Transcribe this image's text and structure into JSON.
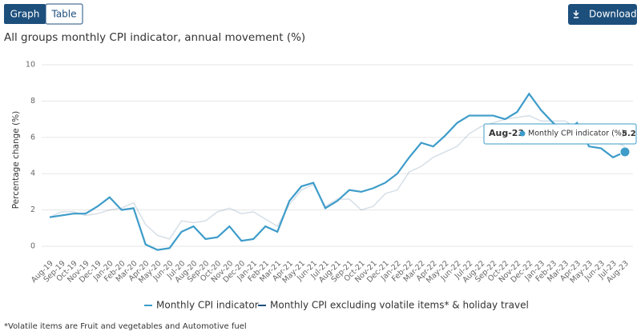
{
  "ui": {
    "tabs": [
      "Graph",
      "Table"
    ],
    "download": "Download"
  },
  "chart_data": {
    "type": "line",
    "title": "All groups monthly CPI indicator, annual movement (%)",
    "y_label": "Percentage change (%)",
    "note": "*Volatile items are Fruit and vegetables and Automotive fuel",
    "categories": [
      "Aug-19",
      "Sep-19",
      "Oct-19",
      "Nov-19",
      "Dec-19",
      "Jan-20",
      "Feb-20",
      "Mar-20",
      "Apr-20",
      "May-20",
      "Jun-20",
      "Jul-20",
      "Aug-20",
      "Sep-20",
      "Oct-20",
      "Nov-20",
      "Dec-20",
      "Jan-21",
      "Feb-21",
      "Mar-21",
      "Apr-21",
      "May-21",
      "Jun-21",
      "Jul-21",
      "Aug-21",
      "Sep-21",
      "Oct-21",
      "Nov-21",
      "Dec-21",
      "Jan-22",
      "Feb-22",
      "Mar-22",
      "Apr-22",
      "May-22",
      "Jun-22",
      "Jul-22",
      "Aug-22",
      "Sep-22",
      "Oct-22",
      "Nov-22",
      "Dec-22",
      "Jan-23",
      "Feb-23",
      "Mar-23",
      "Apr-23",
      "May-23",
      "Jun-23",
      "Jul-23",
      "Aug-23"
    ],
    "series": [
      {
        "name": "Monthly CPI indicator",
        "color": "#3d9cc9",
        "values": [
          1.6,
          1.7,
          1.8,
          1.8,
          2.2,
          2.7,
          2.0,
          2.1,
          0.1,
          -0.2,
          -0.1,
          0.8,
          1.1,
          0.4,
          0.5,
          1.1,
          0.3,
          0.4,
          1.1,
          0.8,
          2.5,
          3.3,
          3.5,
          2.1,
          2.5,
          3.1,
          3.0,
          3.2,
          3.5,
          4.0,
          4.9,
          5.7,
          5.5,
          6.1,
          6.8,
          7.2,
          7.2,
          7.2,
          7.0,
          7.4,
          8.4,
          7.5,
          6.8,
          6.3,
          6.8,
          5.5,
          5.4,
          4.9,
          5.2
        ]
      },
      {
        "name": "Monthly CPI excluding volatile items* & holiday travel",
        "color": "#1d4f7c",
        "values": [
          1.6,
          1.9,
          1.9,
          1.7,
          1.8,
          2.0,
          2.1,
          2.4,
          1.2,
          0.6,
          0.4,
          1.4,
          1.3,
          1.4,
          1.9,
          2.1,
          1.8,
          1.9,
          1.5,
          1.1,
          2.3,
          3.1,
          3.4,
          2.2,
          2.6,
          2.6,
          2.0,
          2.2,
          2.9,
          3.1,
          4.1,
          4.4,
          4.9,
          5.2,
          5.5,
          6.2,
          6.6,
          6.8,
          7.0,
          7.1,
          7.2,
          6.9,
          6.9,
          6.9,
          6.5,
          6.4,
          6.1,
          5.8,
          5.5
        ]
      }
    ],
    "ylim": [
      -0.5,
      10
    ],
    "yticks": [
      0,
      2,
      4,
      6,
      8,
      10
    ],
    "grid": true,
    "tooltip": {
      "index": 48,
      "label": "Monthly CPI indicator (%):"
    }
  }
}
